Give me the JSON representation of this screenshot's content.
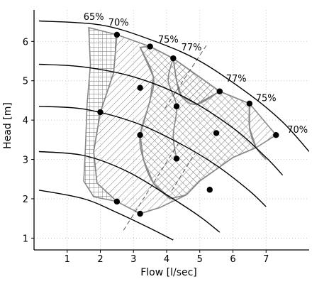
{
  "chart_data": {
    "type": "line",
    "title": "",
    "xlabel": "Flow [l/sec]",
    "ylabel": "Head [m]",
    "xlim": [
      0,
      8.3
    ],
    "ylim": [
      0.7,
      6.8
    ],
    "x_ticks": [
      1,
      2,
      3,
      4,
      5,
      6,
      7
    ],
    "y_ticks": [
      1,
      2,
      3,
      4,
      5,
      6
    ],
    "grid": true,
    "efficiency_labels": [
      {
        "text": "65%",
        "x": 1.8,
        "y": 6.55
      },
      {
        "text": "70%",
        "x": 2.55,
        "y": 6.4
      },
      {
        "text": "75%",
        "x": 4.05,
        "y": 5.97
      },
      {
        "text": "77%",
        "x": 4.75,
        "y": 5.77
      },
      {
        "text": "77%",
        "x": 6.1,
        "y": 4.98
      },
      {
        "text": "75%",
        "x": 7.0,
        "y": 4.48
      },
      {
        "text": "70%",
        "x": 7.95,
        "y": 3.68
      }
    ],
    "series": [
      {
        "values": [
          [
            0.15,
            6.52
          ],
          [
            2.0,
            6.42
          ],
          [
            3.5,
            6.05
          ],
          [
            5.0,
            5.5
          ],
          [
            6.5,
            4.65
          ],
          [
            7.5,
            3.95
          ],
          [
            8.3,
            3.2
          ]
        ]
      },
      {
        "values": [
          [
            0.15,
            5.42
          ],
          [
            1.5,
            5.35
          ],
          [
            3.0,
            5.1
          ],
          [
            4.5,
            4.6
          ],
          [
            6.0,
            3.8
          ],
          [
            7.0,
            3.05
          ],
          [
            7.5,
            2.6
          ]
        ]
      },
      {
        "values": [
          [
            0.15,
            4.35
          ],
          [
            1.5,
            4.28
          ],
          [
            3.0,
            3.95
          ],
          [
            4.3,
            3.45
          ],
          [
            5.5,
            2.85
          ],
          [
            6.5,
            2.2
          ],
          [
            7.0,
            1.8
          ]
        ]
      },
      {
        "values": [
          [
            0.15,
            3.2
          ],
          [
            1.5,
            3.1
          ],
          [
            2.8,
            2.7
          ],
          [
            4.0,
            2.1
          ],
          [
            5.0,
            1.55
          ],
          [
            5.6,
            1.15
          ]
        ]
      },
      {
        "values": [
          [
            0.15,
            2.22
          ],
          [
            1.5,
            2.0
          ],
          [
            2.5,
            1.65
          ],
          [
            3.5,
            1.25
          ],
          [
            4.2,
            0.95
          ]
        ]
      }
    ],
    "points": [
      {
        "x": 2.5,
        "y": 6.17
      },
      {
        "x": 3.5,
        "y": 5.87
      },
      {
        "x": 4.2,
        "y": 5.57
      },
      {
        "x": 5.6,
        "y": 4.73
      },
      {
        "x": 6.5,
        "y": 4.42
      },
      {
        "x": 7.3,
        "y": 3.62
      },
      {
        "x": 3.2,
        "y": 4.82
      },
      {
        "x": 4.3,
        "y": 4.35
      },
      {
        "x": 5.5,
        "y": 3.67
      },
      {
        "x": 2.0,
        "y": 4.2
      },
      {
        "x": 3.2,
        "y": 3.62
      },
      {
        "x": 4.3,
        "y": 3.02
      },
      {
        "x": 5.3,
        "y": 2.23
      },
      {
        "x": 2.5,
        "y": 1.93
      },
      {
        "x": 3.2,
        "y": 1.62
      }
    ],
    "regions": [
      {
        "pattern": "crosshatch",
        "outline": [
          [
            1.65,
            6.35
          ],
          [
            2.5,
            6.17
          ],
          [
            2.4,
            5.2
          ],
          [
            2.0,
            4.2
          ],
          [
            1.8,
            3.2
          ],
          [
            1.9,
            2.4
          ],
          [
            2.5,
            1.93
          ],
          [
            1.8,
            2.05
          ],
          [
            1.5,
            2.45
          ],
          [
            1.55,
            3.3
          ],
          [
            1.6,
            4.4
          ],
          [
            1.7,
            5.4
          ]
        ]
      },
      {
        "pattern": "diagonal-right",
        "outline": [
          [
            2.5,
            6.17
          ],
          [
            3.5,
            5.87
          ],
          [
            4.2,
            5.57
          ],
          [
            5.6,
            4.73
          ],
          [
            6.5,
            4.42
          ],
          [
            7.3,
            3.62
          ],
          [
            6.7,
            3.3
          ],
          [
            6.0,
            3.05
          ],
          [
            5.5,
            2.75
          ],
          [
            5.0,
            2.45
          ],
          [
            4.6,
            2.1
          ],
          [
            3.8,
            1.78
          ],
          [
            3.2,
            1.62
          ],
          [
            2.5,
            1.93
          ],
          [
            1.9,
            2.4
          ],
          [
            1.8,
            3.2
          ],
          [
            2.0,
            4.2
          ],
          [
            2.4,
            5.2
          ]
        ]
      },
      {
        "pattern": "diagonal-left",
        "outline": [
          [
            3.2,
            5.85
          ],
          [
            3.6,
            5.1
          ],
          [
            3.5,
            4.5
          ],
          [
            3.2,
            3.62
          ],
          [
            3.3,
            3.0
          ],
          [
            3.6,
            2.4
          ],
          [
            4.1,
            2.0
          ],
          [
            4.6,
            2.1
          ],
          [
            5.0,
            2.45
          ],
          [
            5.5,
            2.75
          ],
          [
            6.0,
            3.05
          ],
          [
            6.7,
            3.3
          ],
          [
            6.5,
            3.8
          ],
          [
            6.5,
            4.42
          ],
          [
            5.6,
            4.73
          ],
          [
            4.2,
            5.57
          ],
          [
            3.5,
            5.87
          ]
        ]
      },
      {
        "pattern": "diagonal-right",
        "outline": [
          [
            4.2,
            5.57
          ],
          [
            4.3,
            5.0
          ],
          [
            4.45,
            4.6
          ],
          [
            4.9,
            4.4
          ],
          [
            5.6,
            4.73
          ]
        ]
      }
    ],
    "region_boundaries": [
      [
        [
          3.2,
          5.85
        ],
        [
          3.6,
          5.1
        ],
        [
          3.5,
          4.5
        ],
        [
          3.2,
          3.62
        ],
        [
          3.3,
          3.0
        ],
        [
          3.6,
          2.4
        ],
        [
          4.1,
          2.0
        ]
      ],
      [
        [
          4.2,
          5.57
        ],
        [
          4.3,
          5.0
        ],
        [
          4.45,
          4.6
        ],
        [
          4.9,
          4.4
        ],
        [
          5.6,
          4.73
        ]
      ],
      [
        [
          4.2,
          5.57
        ],
        [
          4.05,
          5.0
        ],
        [
          4.3,
          4.35
        ],
        [
          4.2,
          3.6
        ],
        [
          4.3,
          3.02
        ]
      ],
      [
        [
          6.5,
          4.42
        ],
        [
          6.5,
          3.8
        ],
        [
          6.7,
          3.3
        ],
        [
          7.0,
          3.0
        ]
      ]
    ],
    "dashed_lines": [
      [
        [
          3.95,
          4.3
        ],
        [
          5.2,
          5.9
        ]
      ],
      [
        [
          2.7,
          1.2
        ],
        [
          4.35,
          3.4
        ]
      ],
      [
        [
          4.15,
          2.2
        ],
        [
          4.85,
          3.15
        ]
      ]
    ],
    "colors": {
      "curve": "#000000",
      "hatch": "#6d6d6d",
      "boundary": "#888888",
      "grid": "#b4b4b4",
      "point": "#000000"
    }
  }
}
